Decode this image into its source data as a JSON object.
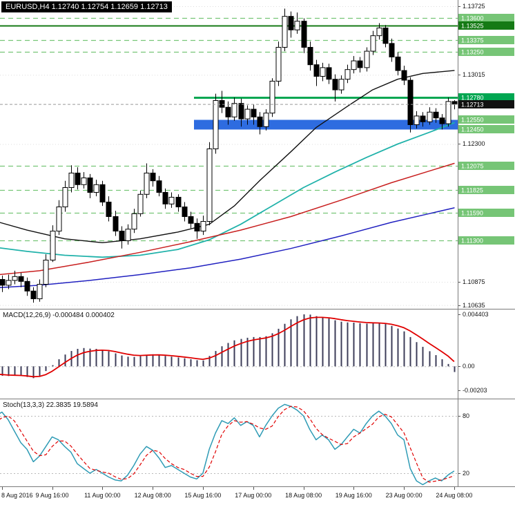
{
  "chart_data": [
    {
      "type": "candlestick",
      "symbol": "EURUSD",
      "timeframe": "H4",
      "title_bar": "EURUSD,H4 1.12740 1.12754 1.12659 1.12713",
      "ohlc_current": {
        "open": 1.1274,
        "high": 1.12754,
        "low": 1.12659,
        "close": 1.12713
      },
      "y_axis": {
        "max": 1.13732,
        "min": 1.10635,
        "grid_labels": [
          {
            "text": "1.13725",
            "price": 1.13725
          },
          {
            "text": "1.13015",
            "price": 1.13015
          },
          {
            "text": "1.12300",
            "price": 1.123
          },
          {
            "text": "1.10875",
            "price": 1.10875
          },
          {
            "text": "1.10635",
            "price": 1.10635
          }
        ]
      },
      "x_labels": [
        {
          "text": "8 Aug 2016",
          "bar": 2
        },
        {
          "text": "9 Aug 16:00",
          "bar": 10
        },
        {
          "text": "11 Aug 00:00",
          "bar": 18
        },
        {
          "text": "12 Aug 08:00",
          "bar": 26
        },
        {
          "text": "15 Aug 16:00",
          "bar": 34
        },
        {
          "text": "17 Aug 00:00",
          "bar": 42
        },
        {
          "text": "18 Aug 08:00",
          "bar": 50
        },
        {
          "text": "19 Aug 16:00",
          "bar": 58
        },
        {
          "text": "23 Aug 00:00",
          "bar": 66
        },
        {
          "text": "24 Aug 08:00",
          "bar": 74
        }
      ],
      "candles": [
        [
          1.109,
          1.1095,
          1.1078,
          1.1086
        ],
        [
          1.1086,
          1.1097,
          1.1082,
          1.109
        ],
        [
          1.109,
          1.1094,
          1.1077,
          1.1084
        ],
        [
          1.1084,
          1.1095,
          1.108,
          1.1089
        ],
        [
          1.1089,
          1.1099,
          1.1085,
          1.1093
        ],
        [
          1.1093,
          1.1097,
          1.1082,
          1.1088
        ],
        [
          1.1088,
          1.1092,
          1.1073,
          1.1078
        ],
        [
          1.1078,
          1.1082,
          1.1066,
          1.107
        ],
        [
          1.107,
          1.109,
          1.1067,
          1.1085
        ],
        [
          1.1085,
          1.1116,
          1.1082,
          1.111
        ],
        [
          1.111,
          1.1146,
          1.1108,
          1.114
        ],
        [
          1.114,
          1.1172,
          1.1136,
          1.1165
        ],
        [
          1.1165,
          1.1192,
          1.116,
          1.1185
        ],
        [
          1.1185,
          1.1208,
          1.118,
          1.12
        ],
        [
          1.12,
          1.1206,
          1.1183,
          1.1188
        ],
        [
          1.1188,
          1.1201,
          1.1184,
          1.1195
        ],
        [
          1.1195,
          1.1199,
          1.1174,
          1.118
        ],
        [
          1.118,
          1.1193,
          1.1176,
          1.1188
        ],
        [
          1.1188,
          1.1192,
          1.1166,
          1.117
        ],
        [
          1.117,
          1.1176,
          1.115,
          1.1155
        ],
        [
          1.1155,
          1.1161,
          1.1135,
          1.114
        ],
        [
          1.114,
          1.1145,
          1.1122,
          1.113
        ],
        [
          1.113,
          1.1147,
          1.1126,
          1.1142
        ],
        [
          1.1142,
          1.1163,
          1.1138,
          1.1158
        ],
        [
          1.1158,
          1.1182,
          1.1155,
          1.1178
        ],
        [
          1.1178,
          1.121,
          1.1174,
          1.12
        ],
        [
          1.12,
          1.1204,
          1.1186,
          1.1192
        ],
        [
          1.1192,
          1.1197,
          1.1176,
          1.118
        ],
        [
          1.118,
          1.1184,
          1.1163,
          1.1168
        ],
        [
          1.1168,
          1.118,
          1.1164,
          1.1175
        ],
        [
          1.1175,
          1.1178,
          1.116,
          1.1165
        ],
        [
          1.1165,
          1.117,
          1.115,
          1.1155
        ],
        [
          1.1155,
          1.116,
          1.1143,
          1.1148
        ],
        [
          1.1148,
          1.1153,
          1.1132,
          1.114
        ],
        [
          1.114,
          1.1156,
          1.1136,
          1.115
        ],
        [
          1.115,
          1.1232,
          1.1146,
          1.1225
        ],
        [
          1.1225,
          1.1282,
          1.122,
          1.1275
        ],
        [
          1.1275,
          1.1285,
          1.1262,
          1.1268
        ],
        [
          1.1268,
          1.1274,
          1.125,
          1.1258
        ],
        [
          1.1258,
          1.1278,
          1.1254,
          1.1272
        ],
        [
          1.1272,
          1.1277,
          1.1248,
          1.1256
        ],
        [
          1.1256,
          1.127,
          1.125,
          1.1266
        ],
        [
          1.1266,
          1.1271,
          1.125,
          1.1258
        ],
        [
          1.1258,
          1.1263,
          1.124,
          1.1248
        ],
        [
          1.1248,
          1.1266,
          1.1244,
          1.1262
        ],
        [
          1.1262,
          1.1298,
          1.1258,
          1.1295
        ],
        [
          1.1295,
          1.1336,
          1.129,
          1.133
        ],
        [
          1.133,
          1.137,
          1.1326,
          1.1362
        ],
        [
          1.1362,
          1.1367,
          1.134,
          1.1348
        ],
        [
          1.1348,
          1.1366,
          1.1344,
          1.1357
        ],
        [
          1.1357,
          1.136,
          1.1324,
          1.133
        ],
        [
          1.133,
          1.1336,
          1.1306,
          1.1312
        ],
        [
          1.1312,
          1.1317,
          1.129,
          1.13
        ],
        [
          1.13,
          1.1314,
          1.1295,
          1.1309
        ],
        [
          1.1309,
          1.1313,
          1.1292,
          1.1297
        ],
        [
          1.1297,
          1.1302,
          1.1274,
          1.1286
        ],
        [
          1.1286,
          1.1301,
          1.1282,
          1.1297
        ],
        [
          1.1297,
          1.1312,
          1.1293,
          1.1307
        ],
        [
          1.1307,
          1.1321,
          1.1303,
          1.1316
        ],
        [
          1.1316,
          1.132,
          1.1304,
          1.1309
        ],
        [
          1.1309,
          1.133,
          1.1305,
          1.1326
        ],
        [
          1.1326,
          1.1347,
          1.1322,
          1.1342
        ],
        [
          1.1342,
          1.1355,
          1.1338,
          1.135
        ],
        [
          1.135,
          1.1353,
          1.133,
          1.1334
        ],
        [
          1.1334,
          1.1339,
          1.1315,
          1.132
        ],
        [
          1.132,
          1.1325,
          1.1301,
          1.1306
        ],
        [
          1.1306,
          1.1311,
          1.1291,
          1.1296
        ],
        [
          1.1296,
          1.1299,
          1.1242,
          1.125
        ],
        [
          1.125,
          1.1264,
          1.1246,
          1.1259
        ],
        [
          1.1259,
          1.1263,
          1.1248,
          1.1253
        ],
        [
          1.1253,
          1.1268,
          1.125,
          1.1263
        ],
        [
          1.1263,
          1.1267,
          1.1252,
          1.1257
        ],
        [
          1.1257,
          1.1261,
          1.1245,
          1.1251
        ],
        [
          1.1251,
          1.1278,
          1.1248,
          1.1274
        ],
        [
          1.1274,
          1.12754,
          1.12659,
          1.12713
        ]
      ],
      "moving_averages": [
        {
          "name": "ma-black",
          "color": "#111111",
          "width": 1.4,
          "points": [
            [
              0,
              1.1152
            ],
            [
              6,
              1.1141
            ],
            [
              12,
              1.1132
            ],
            [
              18,
              1.1128
            ],
            [
              24,
              1.1132
            ],
            [
              30,
              1.1139
            ],
            [
              35,
              1.1147
            ],
            [
              39,
              1.1166
            ],
            [
              43,
              1.1192
            ],
            [
              48,
              1.1222
            ],
            [
              52,
              1.1247
            ],
            [
              57,
              1.1269
            ],
            [
              61,
              1.1286
            ],
            [
              65,
              1.1297
            ],
            [
              69,
              1.1303
            ],
            [
              74,
              1.1306
            ]
          ]
        },
        {
          "name": "ma-teal",
          "color": "#20B2AA",
          "width": 1.8,
          "points": [
            [
              0,
              1.1124
            ],
            [
              6,
              1.1119
            ],
            [
              12,
              1.1115
            ],
            [
              18,
              1.1113
            ],
            [
              24,
              1.1115
            ],
            [
              30,
              1.1121
            ],
            [
              35,
              1.1131
            ],
            [
              40,
              1.1147
            ],
            [
              45,
              1.1166
            ],
            [
              50,
              1.1185
            ],
            [
              55,
              1.1201
            ],
            [
              60,
              1.1216
            ],
            [
              65,
              1.123
            ],
            [
              70,
              1.1242
            ],
            [
              74,
              1.1252
            ]
          ]
        },
        {
          "name": "ma-red",
          "color": "#c81e1e",
          "width": 1.5,
          "points": [
            [
              0,
              1.1094
            ],
            [
              8,
              1.1099
            ],
            [
              16,
              1.1108
            ],
            [
              24,
              1.1118
            ],
            [
              32,
              1.1129
            ],
            [
              40,
              1.1141
            ],
            [
              48,
              1.1155
            ],
            [
              56,
              1.1172
            ],
            [
              64,
              1.119
            ],
            [
              70,
              1.1202
            ],
            [
              74,
              1.121
            ]
          ]
        },
        {
          "name": "ma-blue",
          "color": "#2020c0",
          "width": 1.5,
          "points": [
            [
              0,
              1.1081
            ],
            [
              8,
              1.1084
            ],
            [
              16,
              1.1089
            ],
            [
              24,
              1.1095
            ],
            [
              32,
              1.1102
            ],
            [
              40,
              1.1111
            ],
            [
              48,
              1.1122
            ],
            [
              56,
              1.1135
            ],
            [
              64,
              1.1149
            ],
            [
              70,
              1.1158
            ],
            [
              74,
              1.1164
            ]
          ]
        }
      ],
      "levels": [
        {
          "label": "1.13600",
          "price": 1.136,
          "color": "#76c576",
          "style": "dashed",
          "from_bar": 0
        },
        {
          "label": "1.13525",
          "price": 1.13525,
          "color": "#157a15",
          "style": "solid",
          "width": 2,
          "from_bar": 0
        },
        {
          "label": "1.13375",
          "price": 1.13375,
          "color": "#76c576",
          "style": "dashed",
          "from_bar": 0
        },
        {
          "label": "1.13250",
          "price": 1.1325,
          "color": "#76c576",
          "style": "dashed",
          "from_bar": 0
        },
        {
          "label": "1.12780",
          "price": 1.1278,
          "color": "#00a651",
          "style": "solid",
          "width": 3,
          "from_bar": 33
        },
        {
          "label": "1.12550",
          "price": 1.1255,
          "color": "#76c576",
          "style": "edge",
          "from_bar": 33
        },
        {
          "label": "1.12450",
          "price": 1.1245,
          "color": "#76c576",
          "style": "edge",
          "from_bar": 33
        },
        {
          "label": "1.12075",
          "price": 1.12075,
          "color": "#76c576",
          "style": "dashed",
          "from_bar": 0
        },
        {
          "label": "1.11825",
          "price": 1.11825,
          "color": "#76c576",
          "style": "dashed",
          "from_bar": 0
        },
        {
          "label": "1.11590",
          "price": 1.1159,
          "color": "#76c576",
          "style": "dashed",
          "from_bar": 0
        },
        {
          "label": "1.11300",
          "price": 1.113,
          "color": "#76c576",
          "style": "dashed",
          "from_bar": 0
        }
      ],
      "zone": {
        "from_price": 1.1245,
        "to_price": 1.1255,
        "color": "#2e6ce0",
        "from_bar": 33
      },
      "current_price": {
        "label": "1.12713",
        "price": 1.12713,
        "badge_color": "#111111",
        "line_color": "#999999"
      }
    },
    {
      "type": "macd",
      "label": "MACD(12,26,9) -0.000484 0.000402",
      "params": "12,26,9",
      "main_value": -0.000484,
      "signal_value": 0.000402,
      "ylim": [
        -0.00203,
        0.004403
      ],
      "scale_labels": [
        {
          "text": "0.004403",
          "value": 0.004403
        },
        {
          "text": "0.00",
          "value": 0
        },
        {
          "text": "-0.00203",
          "value": -0.00203
        }
      ],
      "colors": {
        "histogram": "#3c3c58",
        "signal": "#e00000"
      },
      "histogram": [
        -0.0006,
        -0.00072,
        -0.0008,
        -0.00082,
        -0.00078,
        -0.0008,
        -0.0009,
        -0.001,
        -0.0008,
        -0.0004,
        0.0001,
        0.0006,
        0.001,
        0.0013,
        0.00148,
        0.00155,
        0.0015,
        0.00148,
        0.0014,
        0.00128,
        0.0011,
        0.00092,
        0.00082,
        0.0008,
        0.00086,
        0.00098,
        0.00102,
        0.00098,
        0.00088,
        0.00082,
        0.00075,
        0.00068,
        0.0006,
        0.00052,
        0.0005,
        0.00088,
        0.0013,
        0.0017,
        0.00198,
        0.0022,
        0.00232,
        0.00242,
        0.00248,
        0.00248,
        0.00255,
        0.0028,
        0.00318,
        0.0036,
        0.00398,
        0.00425,
        0.0044,
        0.00438,
        0.00425,
        0.00415,
        0.00405,
        0.0039,
        0.00378,
        0.00372,
        0.0037,
        0.00365,
        0.00362,
        0.00364,
        0.00365,
        0.00358,
        0.00342,
        0.0032,
        0.00296,
        0.00248,
        0.00205,
        0.00165,
        0.00128,
        0.00095,
        0.0006,
        0.0002,
        -0.00048
      ]
    },
    {
      "type": "stochastic",
      "label": "Stoch(13,3,3) 22.3835 19.5894",
      "params": "13,3,3",
      "k_value": 22.3835,
      "d_value": 19.5894,
      "levels": [
        {
          "text": "80",
          "value": 80
        },
        {
          "text": "20",
          "value": 20
        }
      ],
      "colors": {
        "k": "#2e9bb5",
        "d": "#e00000",
        "level": "#b8b8b8"
      },
      "k_series": [
        70,
        80,
        84,
        76,
        64,
        52,
        45,
        32,
        38,
        48,
        58,
        55,
        48,
        42,
        30,
        25,
        20,
        24,
        20,
        16,
        13,
        12,
        18,
        28,
        40,
        48,
        44,
        36,
        26,
        28,
        24,
        20,
        16,
        14,
        20,
        45,
        62,
        75,
        72,
        78,
        70,
        74,
        70,
        58,
        70,
        80,
        88,
        92,
        90,
        86,
        80,
        66,
        55,
        60,
        55,
        45,
        50,
        58,
        66,
        62,
        72,
        80,
        85,
        80,
        72,
        60,
        55,
        25,
        12,
        8,
        12,
        15,
        12,
        18,
        22.38
      ]
    }
  ]
}
